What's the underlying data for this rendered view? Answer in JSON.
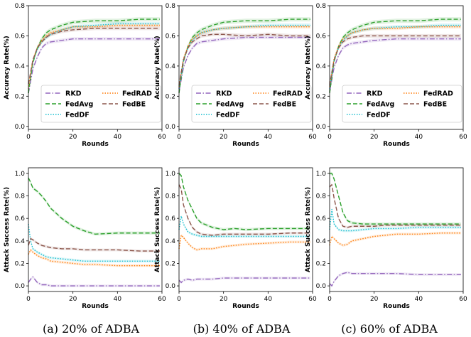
{
  "chart_data": [
    {
      "type": "line",
      "panel": "top-left",
      "xlabel": "Rounds",
      "ylabel": "Accuracy Rate(%)",
      "xlim": [
        0,
        60
      ],
      "ylim": [
        -0.02,
        0.8
      ],
      "xticks": [
        "0",
        "20",
        "40",
        "60"
      ],
      "yticks": [
        "0.0",
        "0.2",
        "0.4",
        "0.6",
        "0.8"
      ],
      "legend_location": "lower-center",
      "x": [
        0,
        1,
        2,
        4,
        6,
        8,
        10,
        15,
        20,
        30,
        40,
        50,
        59
      ],
      "series": [
        {
          "name": "RKD",
          "values": [
            0.22,
            0.3,
            0.38,
            0.46,
            0.52,
            0.55,
            0.56,
            0.57,
            0.58,
            0.58,
            0.58,
            0.58,
            0.58
          ]
        },
        {
          "name": "FedAvg",
          "values": [
            0.22,
            0.33,
            0.42,
            0.52,
            0.58,
            0.62,
            0.64,
            0.67,
            0.69,
            0.7,
            0.7,
            0.71,
            0.71
          ]
        },
        {
          "name": "FedDF",
          "values": [
            0.25,
            0.34,
            0.43,
            0.51,
            0.56,
            0.59,
            0.61,
            0.64,
            0.66,
            0.67,
            0.68,
            0.68,
            0.68
          ]
        },
        {
          "name": "FedRAD",
          "values": [
            0.25,
            0.35,
            0.44,
            0.52,
            0.57,
            0.6,
            0.62,
            0.64,
            0.66,
            0.66,
            0.67,
            0.67,
            0.67
          ]
        },
        {
          "name": "FedBE",
          "values": [
            0.28,
            0.36,
            0.44,
            0.52,
            0.56,
            0.59,
            0.61,
            0.63,
            0.64,
            0.65,
            0.65,
            0.65,
            0.65
          ]
        }
      ]
    },
    {
      "type": "line",
      "panel": "top-middle",
      "xlabel": "Rounds",
      "ylabel": "Accuracy Rate(%)",
      "xlim": [
        0,
        60
      ],
      "ylim": [
        -0.02,
        0.8
      ],
      "xticks": [
        "0",
        "20",
        "40",
        "60"
      ],
      "yticks": [
        "0.0",
        "0.2",
        "0.4",
        "0.6",
        "0.8"
      ],
      "legend_location": "lower-center",
      "x": [
        0,
        1,
        2,
        4,
        6,
        8,
        10,
        15,
        20,
        30,
        40,
        50,
        59
      ],
      "series": [
        {
          "name": "RKD",
          "values": [
            0.23,
            0.31,
            0.39,
            0.47,
            0.52,
            0.55,
            0.56,
            0.57,
            0.58,
            0.59,
            0.59,
            0.59,
            0.59
          ]
        },
        {
          "name": "FedAvg",
          "values": [
            0.22,
            0.33,
            0.43,
            0.53,
            0.59,
            0.62,
            0.64,
            0.67,
            0.69,
            0.7,
            0.7,
            0.71,
            0.71
          ]
        },
        {
          "name": "FedDF",
          "values": [
            0.25,
            0.35,
            0.44,
            0.52,
            0.57,
            0.6,
            0.62,
            0.64,
            0.65,
            0.66,
            0.67,
            0.67,
            0.67
          ]
        },
        {
          "name": "FedRAD",
          "values": [
            0.26,
            0.36,
            0.45,
            0.53,
            0.58,
            0.6,
            0.62,
            0.64,
            0.65,
            0.66,
            0.66,
            0.66,
            0.66
          ]
        },
        {
          "name": "FedBE",
          "values": [
            0.27,
            0.36,
            0.44,
            0.52,
            0.56,
            0.58,
            0.6,
            0.61,
            0.61,
            0.6,
            0.61,
            0.6,
            0.6
          ]
        }
      ]
    },
    {
      "type": "line",
      "panel": "top-right",
      "xlabel": "Rounds",
      "ylabel": "Accuracy Rate(%)",
      "xlim": [
        0,
        60
      ],
      "ylim": [
        -0.02,
        0.8
      ],
      "xticks": [
        "0",
        "20",
        "40",
        "60"
      ],
      "yticks": [
        "0.0",
        "0.2",
        "0.4",
        "0.6",
        "0.8"
      ],
      "legend_location": "lower-center",
      "x": [
        0,
        1,
        2,
        4,
        6,
        8,
        10,
        15,
        20,
        30,
        40,
        50,
        59
      ],
      "series": [
        {
          "name": "RKD",
          "values": [
            0.23,
            0.31,
            0.39,
            0.47,
            0.52,
            0.54,
            0.55,
            0.56,
            0.57,
            0.58,
            0.58,
            0.58,
            0.58
          ]
        },
        {
          "name": "FedAvg",
          "values": [
            0.22,
            0.33,
            0.43,
            0.53,
            0.59,
            0.62,
            0.64,
            0.67,
            0.69,
            0.7,
            0.7,
            0.71,
            0.71
          ]
        },
        {
          "name": "FedDF",
          "values": [
            0.25,
            0.35,
            0.44,
            0.52,
            0.57,
            0.6,
            0.62,
            0.64,
            0.65,
            0.66,
            0.66,
            0.67,
            0.67
          ]
        },
        {
          "name": "FedRAD",
          "values": [
            0.26,
            0.36,
            0.45,
            0.53,
            0.58,
            0.6,
            0.62,
            0.64,
            0.65,
            0.65,
            0.66,
            0.66,
            0.66
          ]
        },
        {
          "name": "FedBE",
          "values": [
            0.27,
            0.36,
            0.44,
            0.52,
            0.56,
            0.58,
            0.59,
            0.6,
            0.6,
            0.6,
            0.6,
            0.6,
            0.6
          ]
        }
      ]
    },
    {
      "type": "line",
      "panel": "bottom-left",
      "xlabel": "Rounds",
      "ylabel": "Attack Success Rate(%)",
      "xlim": [
        0,
        60
      ],
      "ylim": [
        -0.05,
        1.05
      ],
      "xticks": [
        "0",
        "20",
        "40",
        "60"
      ],
      "yticks": [
        "0.0",
        "0.2",
        "0.4",
        "0.6",
        "0.8",
        "1.0"
      ],
      "x": [
        0,
        1,
        2,
        4,
        6,
        8,
        10,
        15,
        20,
        25,
        30,
        40,
        50,
        59
      ],
      "series": [
        {
          "name": "RKD",
          "values": [
            0.03,
            0.06,
            0.08,
            0.03,
            0.01,
            0.01,
            0.0,
            0.0,
            0.0,
            0.0,
            0.0,
            0.0,
            0.0,
            0.0
          ]
        },
        {
          "name": "FedAvg",
          "values": [
            0.96,
            0.92,
            0.87,
            0.84,
            0.8,
            0.75,
            0.69,
            0.6,
            0.53,
            0.49,
            0.46,
            0.47,
            0.47,
            0.47
          ]
        },
        {
          "name": "FedDF",
          "values": [
            0.55,
            0.4,
            0.33,
            0.3,
            0.28,
            0.26,
            0.25,
            0.24,
            0.23,
            0.22,
            0.22,
            0.22,
            0.22,
            0.22
          ]
        },
        {
          "name": "FedRAD",
          "values": [
            0.28,
            0.32,
            0.3,
            0.27,
            0.25,
            0.24,
            0.22,
            0.21,
            0.2,
            0.19,
            0.19,
            0.18,
            0.18,
            0.18
          ]
        },
        {
          "name": "FedBE",
          "values": [
            0.36,
            0.42,
            0.41,
            0.38,
            0.36,
            0.35,
            0.34,
            0.33,
            0.33,
            0.32,
            0.32,
            0.32,
            0.31,
            0.31
          ]
        }
      ]
    },
    {
      "type": "line",
      "panel": "bottom-middle",
      "xlabel": "Rounds",
      "ylabel": "Attack Success Rate(%)",
      "xlim": [
        0,
        60
      ],
      "ylim": [
        -0.05,
        1.05
      ],
      "xticks": [
        "0",
        "20",
        "40",
        "60"
      ],
      "yticks": [
        "0.0",
        "0.2",
        "0.4",
        "0.6",
        "0.8",
        "1.0"
      ],
      "x": [
        0,
        1,
        2,
        4,
        6,
        8,
        10,
        15,
        20,
        25,
        30,
        40,
        50,
        59
      ],
      "series": [
        {
          "name": "RKD",
          "values": [
            0.05,
            0.03,
            0.05,
            0.06,
            0.05,
            0.06,
            0.06,
            0.06,
            0.07,
            0.07,
            0.07,
            0.07,
            0.07,
            0.07
          ]
        },
        {
          "name": "FedAvg",
          "values": [
            1.0,
            0.98,
            0.88,
            0.76,
            0.68,
            0.6,
            0.56,
            0.52,
            0.5,
            0.51,
            0.5,
            0.51,
            0.51,
            0.51
          ]
        },
        {
          "name": "FedDF",
          "values": [
            0.5,
            0.62,
            0.55,
            0.48,
            0.46,
            0.45,
            0.44,
            0.44,
            0.44,
            0.44,
            0.44,
            0.44,
            0.44,
            0.44
          ]
        },
        {
          "name": "FedRAD",
          "values": [
            0.33,
            0.45,
            0.43,
            0.38,
            0.34,
            0.32,
            0.33,
            0.33,
            0.35,
            0.36,
            0.37,
            0.38,
            0.39,
            0.39
          ]
        },
        {
          "name": "FedBE",
          "values": [
            0.9,
            0.86,
            0.72,
            0.6,
            0.52,
            0.48,
            0.46,
            0.45,
            0.46,
            0.46,
            0.46,
            0.46,
            0.47,
            0.47
          ]
        }
      ]
    },
    {
      "type": "line",
      "panel": "bottom-right",
      "xlabel": "Rounds",
      "ylabel": "Attack Success Rate(%)",
      "xlim": [
        0,
        60
      ],
      "ylim": [
        -0.05,
        1.05
      ],
      "xticks": [
        "0",
        "20",
        "40",
        "60"
      ],
      "yticks": [
        "0.0",
        "0.2",
        "0.4",
        "0.6",
        "0.8",
        "1.0"
      ],
      "x": [
        0,
        1,
        2,
        4,
        6,
        8,
        10,
        15,
        20,
        25,
        30,
        40,
        50,
        59
      ],
      "series": [
        {
          "name": "RKD",
          "values": [
            0.02,
            0.0,
            0.04,
            0.09,
            0.11,
            0.12,
            0.11,
            0.11,
            0.11,
            0.11,
            0.11,
            0.1,
            0.1,
            0.1
          ]
        },
        {
          "name": "FedAvg",
          "values": [
            1.0,
            1.0,
            0.95,
            0.8,
            0.65,
            0.58,
            0.56,
            0.55,
            0.55,
            0.55,
            0.55,
            0.55,
            0.55,
            0.55
          ]
        },
        {
          "name": "FedDF",
          "values": [
            0.5,
            0.68,
            0.55,
            0.5,
            0.49,
            0.49,
            0.49,
            0.5,
            0.51,
            0.51,
            0.51,
            0.52,
            0.52,
            0.52
          ]
        },
        {
          "name": "FedRAD",
          "values": [
            0.36,
            0.44,
            0.42,
            0.38,
            0.36,
            0.37,
            0.4,
            0.42,
            0.44,
            0.45,
            0.46,
            0.46,
            0.47,
            0.47
          ]
        },
        {
          "name": "FedBE",
          "values": [
            0.88,
            0.9,
            0.78,
            0.6,
            0.53,
            0.52,
            0.53,
            0.53,
            0.53,
            0.54,
            0.54,
            0.54,
            0.54,
            0.54
          ]
        }
      ]
    }
  ],
  "series_colors": {
    "RKD": "#9467bd",
    "FedAvg": "#2ca02c",
    "FedDF": "#17becf",
    "FedRAD": "#ff7f0e",
    "FedBE": "#8c564b"
  },
  "legend_order": [
    "RKD",
    "FedRAD",
    "FedAvg",
    "FedBE",
    "FedDF"
  ],
  "captions": [
    "(a) 20% of ADBA",
    "(b) 40% of ADBA",
    "(c) 60% of ADBA"
  ]
}
